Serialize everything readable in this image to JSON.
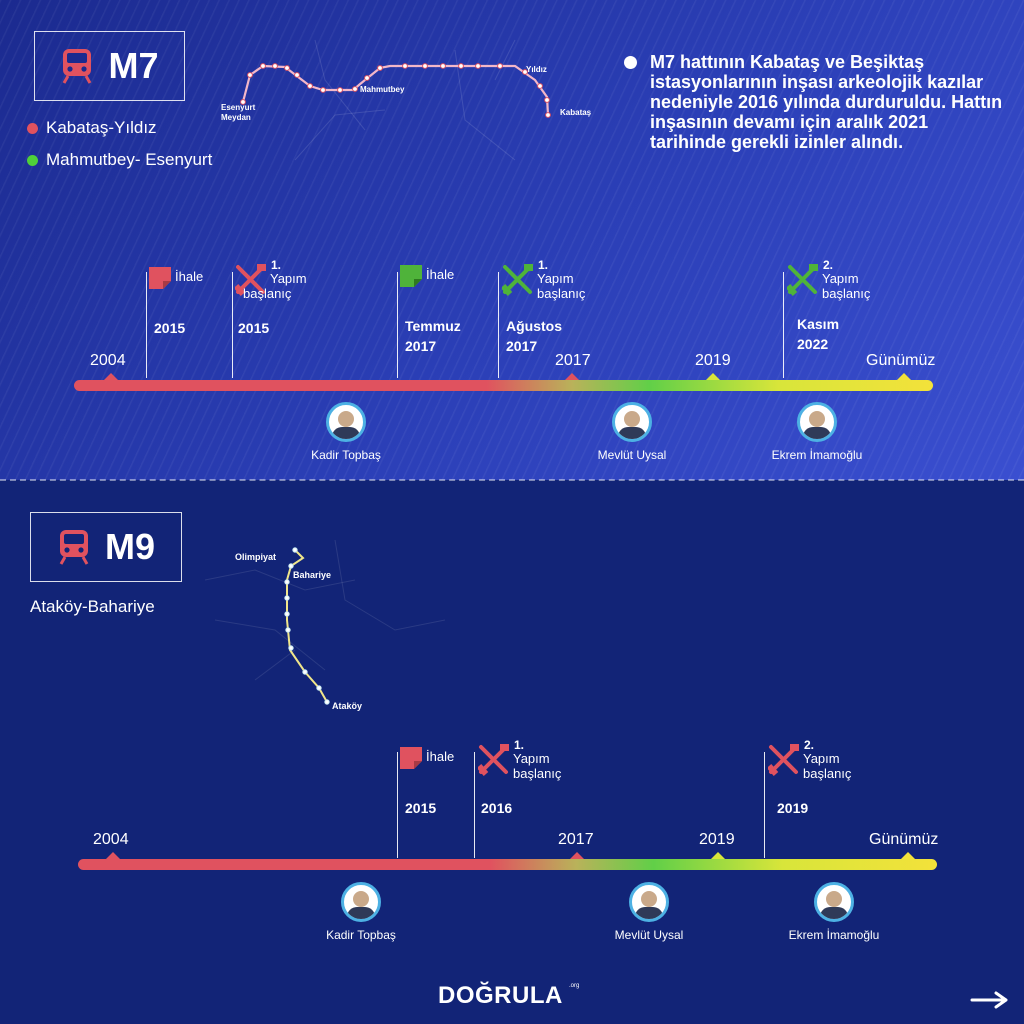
{
  "m7": {
    "line": "M7",
    "legend": [
      {
        "label": "Kabataş-Yıldız",
        "color": "#e0525f"
      },
      {
        "label": "Mahmutbey- Esenyurt",
        "color": "#4fd03a"
      }
    ],
    "map_labels": {
      "esenyurt1": "Esenyurt",
      "esenyurt2": "Meydan",
      "mahmutbey": "Mahmutbey",
      "yildiz": "Yıldız",
      "kabatas": "Kabataş"
    },
    "note": "M7 hattının Kabataş ve Beşiktaş istasyonlarının inşası arkeolojik kazılar nedeniyle 2016 yılında durduruldu. Hattın inşasının devamı için aralık 2021 tarihinde gerekli izinler alındı.",
    "timeline_years": [
      "2004",
      "2017",
      "2019",
      "Günümüz"
    ],
    "events": [
      {
        "icon": "tender-icon",
        "color": "#e0525f",
        "label": "İhale",
        "date": [
          "2015"
        ]
      },
      {
        "icon": "construction-icon",
        "color": "#e0525f",
        "num": "1.",
        "label1": "Yapım",
        "label2": "başlanıç",
        "date": [
          "2015"
        ]
      },
      {
        "icon": "tender-icon",
        "color": "#4fb33a",
        "label": "İhale",
        "date": [
          "Temmuz",
          "2017"
        ]
      },
      {
        "icon": "construction-icon",
        "color": "#4fb33a",
        "num": "1.",
        "label1": "Yapım",
        "label2": "başlanıç",
        "date": [
          "Ağustos",
          "2017"
        ]
      },
      {
        "icon": "construction-icon",
        "color": "#4fb33a",
        "num": "2.",
        "label1": "Yapım",
        "label2": "başlanıç",
        "date": [
          "Kasım",
          "2022"
        ]
      }
    ],
    "people": [
      "Kadir Topbaş",
      "Mevlüt Uysal",
      "Ekrem İmamoğlu"
    ]
  },
  "m9": {
    "line": "M9",
    "subtitle": "Ataköy-Bahariye",
    "map_labels": {
      "olimpiyat": "Olimpiyat",
      "bahariye": "Bahariye",
      "atakoy": "Ataköy"
    },
    "timeline_years": [
      "2004",
      "2017",
      "2019",
      "Günümüz"
    ],
    "events": [
      {
        "icon": "tender-icon",
        "color": "#e0525f",
        "label": "İhale",
        "date": [
          "2015"
        ]
      },
      {
        "icon": "construction-icon",
        "color": "#e0525f",
        "num": "1.",
        "label1": "Yapım",
        "label2": "başlanıç",
        "date": [
          "2016"
        ]
      },
      {
        "icon": "construction-icon",
        "color": "#e0525f",
        "num": "2.",
        "label1": "Yapım",
        "label2": "başlanıç",
        "date": [
          "2019"
        ]
      }
    ],
    "people": [
      "Kadir Topbaş",
      "Mevlüt Uysal",
      "Ekrem İmamoğlu"
    ]
  },
  "logo": {
    "main": "DOĞRULA",
    "ext": ".org"
  }
}
